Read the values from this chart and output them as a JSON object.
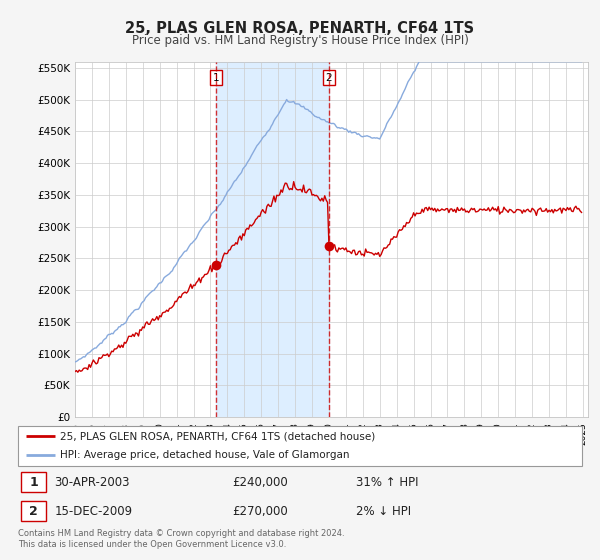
{
  "title": "25, PLAS GLEN ROSA, PENARTH, CF64 1TS",
  "subtitle": "Price paid vs. HM Land Registry's House Price Index (HPI)",
  "ylabel_ticks": [
    "£0",
    "£50K",
    "£100K",
    "£150K",
    "£200K",
    "£250K",
    "£300K",
    "£350K",
    "£400K",
    "£450K",
    "£500K",
    "£550K"
  ],
  "ytick_values": [
    0,
    50000,
    100000,
    150000,
    200000,
    250000,
    300000,
    350000,
    400000,
    450000,
    500000,
    550000
  ],
  "ylim": [
    0,
    560000
  ],
  "x_start_year": 1995,
  "x_end_year": 2025,
  "purchase1_date": 2003.33,
  "purchase1_price": 240000,
  "purchase2_date": 2009.96,
  "purchase2_price": 270000,
  "line_color_property": "#cc0000",
  "line_color_hpi": "#88aadd",
  "shade_color": "#ddeeff",
  "plot_bg_color": "#ffffff",
  "fig_bg_color": "#f5f5f5",
  "legend_entry1": "25, PLAS GLEN ROSA, PENARTH, CF64 1TS (detached house)",
  "legend_entry2": "HPI: Average price, detached house, Vale of Glamorgan",
  "table_row1": [
    "1",
    "30-APR-2003",
    "£240,000",
    "31% ↑ HPI"
  ],
  "table_row2": [
    "2",
    "15-DEC-2009",
    "£270,000",
    "2% ↓ HPI"
  ],
  "footnote": "Contains HM Land Registry data © Crown copyright and database right 2024.\nThis data is licensed under the Open Government Licence v3.0."
}
